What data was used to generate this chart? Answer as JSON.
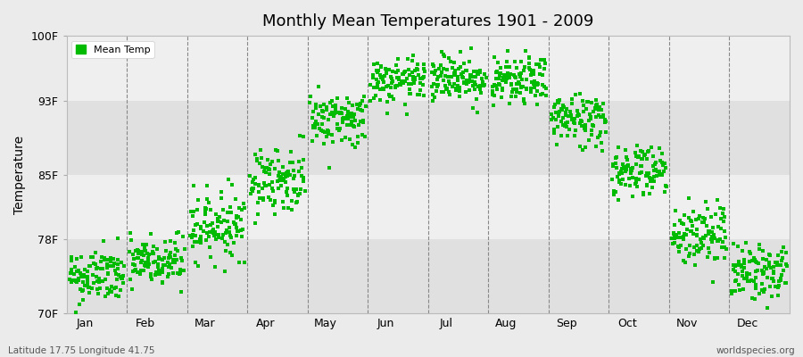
{
  "title": "Monthly Mean Temperatures 1901 - 2009",
  "ylabel": "Temperature",
  "yticks": [
    70,
    78,
    85,
    93,
    100
  ],
  "ytick_labels": [
    "70F",
    "78F",
    "85F",
    "93F",
    "100F"
  ],
  "ylim": [
    70,
    100
  ],
  "months": [
    "Jan",
    "Feb",
    "Mar",
    "Apr",
    "May",
    "Jun",
    "Jul",
    "Aug",
    "Sep",
    "Oct",
    "Nov",
    "Dec"
  ],
  "legend_label": "Mean Temp",
  "dot_color": "#00bb00",
  "marker": "s",
  "marker_size": 2.5,
  "bg_color": "#ebebeb",
  "stripe_color": "#f8f8f8",
  "bottom_left": "Latitude 17.75 Longitude 41.75",
  "bottom_right": "worldspecies.org",
  "monthly_means": [
    74.0,
    75.5,
    79.5,
    84.5,
    91.0,
    95.0,
    95.5,
    95.0,
    91.0,
    85.5,
    78.5,
    74.5
  ],
  "monthly_stds": [
    1.5,
    1.5,
    1.8,
    1.8,
    1.5,
    1.2,
    1.3,
    1.3,
    1.5,
    1.5,
    1.8,
    1.5
  ],
  "n_years": 109,
  "hband_colors": [
    "#e8e8e8",
    "#f4f4f4",
    "#e8e8e8",
    "#f4f4f4"
  ],
  "hband_ranges": [
    [
      70,
      78
    ],
    [
      78,
      85
    ],
    [
      85,
      93
    ],
    [
      93,
      100
    ]
  ]
}
